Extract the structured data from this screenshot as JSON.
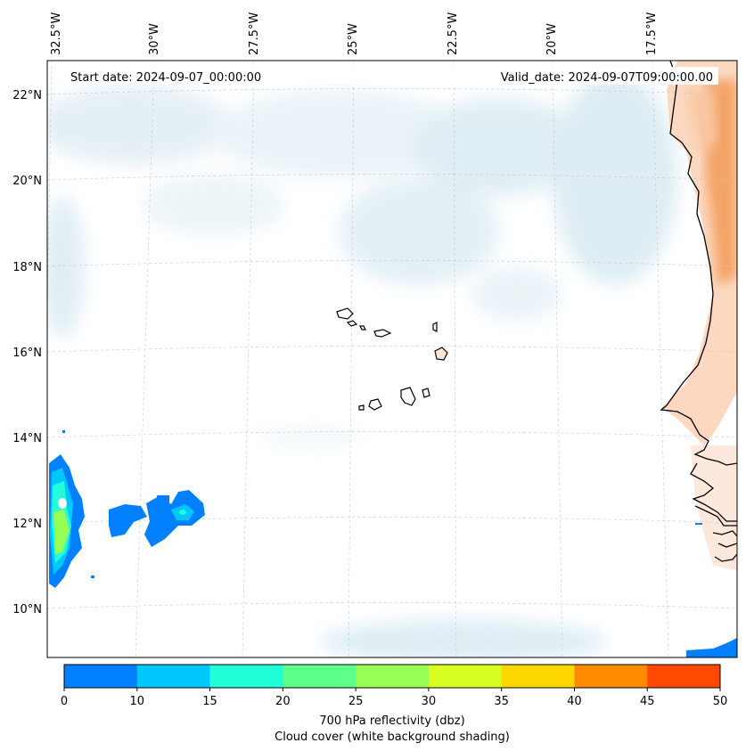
{
  "map": {
    "start_date_label": "Start date: 2024-09-07_00:00:00",
    "valid_date_label": "Valid_date: 2024-09-07T09:00:00.00",
    "lon_labels": [
      "32.5°W",
      "30°W",
      "27.5°W",
      "25°W",
      "22.5°W",
      "20°W",
      "17.5°W"
    ],
    "lat_labels": [
      "22°N",
      "20°N",
      "18°N",
      "16°N",
      "14°N",
      "12°N",
      "10°N"
    ],
    "coastline_color": "#000000",
    "land_cloud_color": "#f4a468",
    "ocean_cloud_color": "#d6eaf2",
    "gridlines": true
  },
  "colorbar": {
    "ticks": [
      "0",
      "10",
      "15",
      "20",
      "25",
      "30",
      "35",
      "40",
      "45",
      "50"
    ],
    "colors": [
      "#0080ff",
      "#00c8ff",
      "#22ffd8",
      "#5cff8a",
      "#98ff55",
      "#d8ff22",
      "#ffd700",
      "#ff8c00",
      "#ff4800"
    ],
    "label_line1": "700 hPa reflectivity (dbz)",
    "label_line2": "Cloud cover (white background shading)"
  }
}
